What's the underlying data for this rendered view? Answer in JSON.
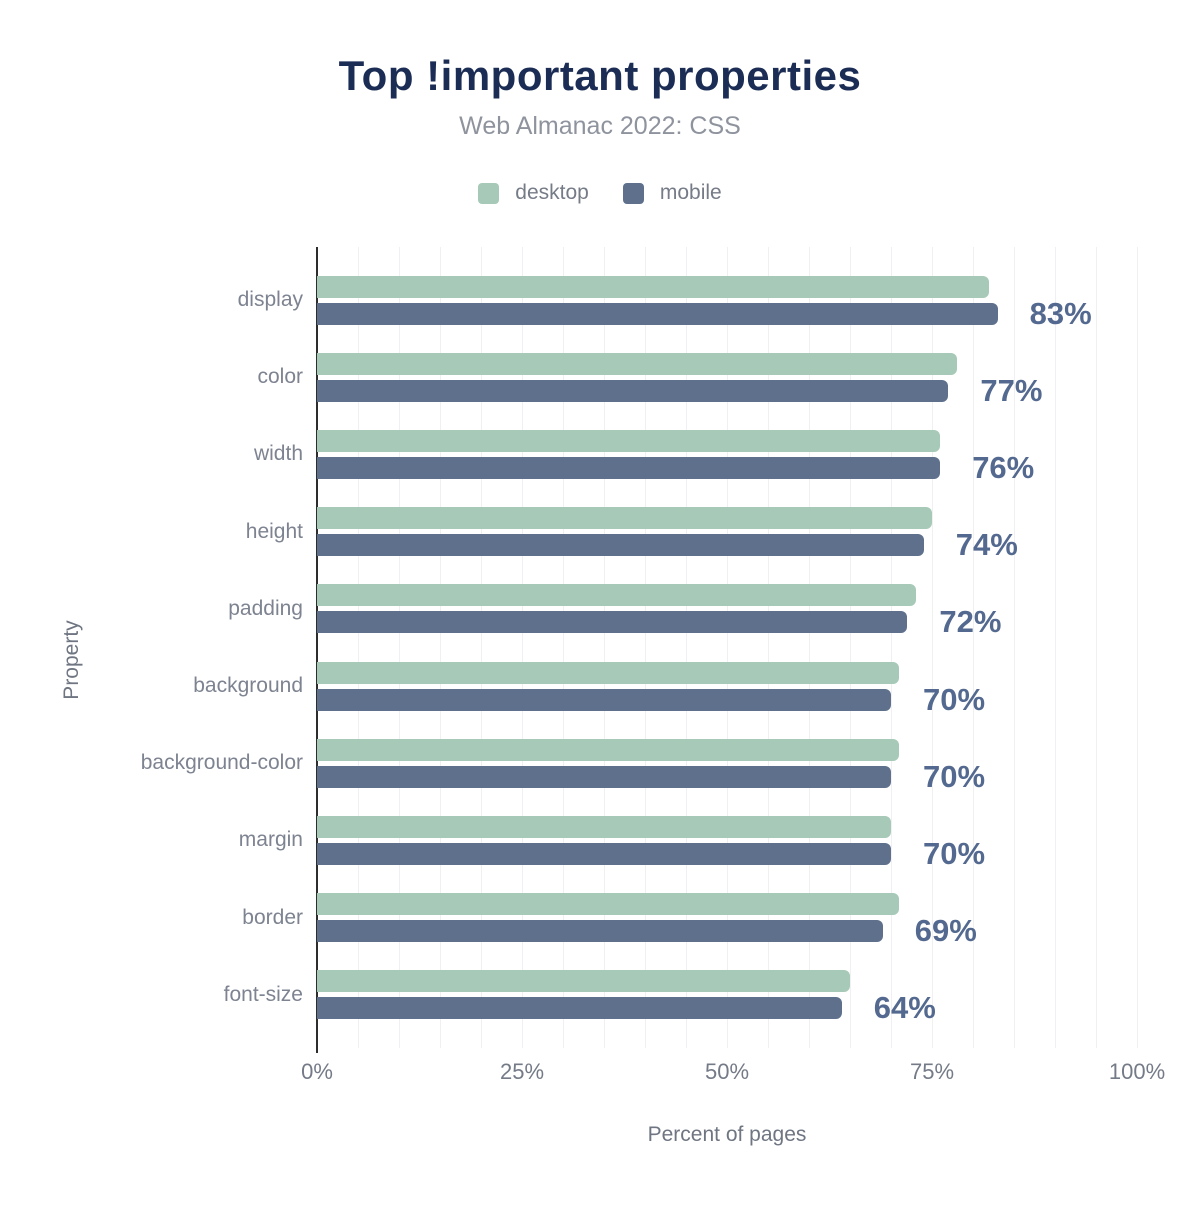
{
  "title": "Top !important properties",
  "subtitle": "Web Almanac 2022: CSS",
  "legend": [
    {
      "label": "desktop",
      "color": "#a7c9b7"
    },
    {
      "label": "mobile",
      "color": "#5e708c"
    }
  ],
  "axes": {
    "xlabel": "Percent of pages",
    "ylabel": "Property"
  },
  "chart_data": {
    "type": "bar",
    "orientation": "horizontal",
    "title": "Top !important properties",
    "subtitle": "Web Almanac 2022: CSS",
    "categories": [
      "display",
      "color",
      "width",
      "height",
      "padding",
      "background",
      "background-color",
      "margin",
      "border",
      "font-size"
    ],
    "series": [
      {
        "name": "desktop",
        "color": "#a7c9b7",
        "values": [
          82,
          78,
          76,
          75,
          73,
          71,
          71,
          70,
          71,
          65
        ]
      },
      {
        "name": "mobile",
        "color": "#5e708c",
        "values": [
          83,
          77,
          76,
          74,
          72,
          70,
          70,
          70,
          69,
          64
        ]
      }
    ],
    "value_labels": [
      "83%",
      "77%",
      "76%",
      "74%",
      "72%",
      "70%",
      "70%",
      "70%",
      "69%",
      "64%"
    ],
    "value_labels_source": "mobile",
    "xlabel": "Percent of pages",
    "ylabel": "Property",
    "x_ticks": [
      "0%",
      "25%",
      "50%",
      "75%",
      "100%"
    ],
    "xlim": [
      0,
      100
    ],
    "grid": "vertical every 5%",
    "legend_position": "top"
  },
  "colors": {
    "background": "#ffffff",
    "title": "#1b2d55",
    "subtitle": "#8e939d",
    "desktop_bar": "#a7c9b7",
    "mobile_bar": "#5e708c",
    "value_label": "#54698f",
    "category_label": "#7d8390",
    "tick_label": "#747b87",
    "axis_title": "#6f7682",
    "gridline": "#f0f0f3",
    "axis_line": "#2d2d2d"
  }
}
